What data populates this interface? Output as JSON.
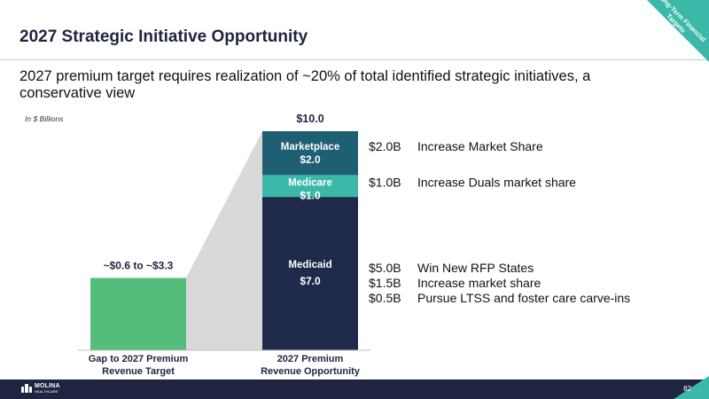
{
  "slide": {
    "title": "2027 Strategic Initiative Opportunity",
    "subtitle": "2027 premium target requires realization of ~20% of total identified strategic initiatives, a conservative view",
    "units_note": "In $ Billions",
    "corner_flag": "Long-Term Financial Targets",
    "page_number": "82"
  },
  "logo": {
    "name": "MOLINA",
    "tagline": "HEALTHCARE"
  },
  "colors": {
    "gap_bar": "#55bd7b",
    "medicaid": "#1f2a4a",
    "medicare": "#3bb8a8",
    "marketplace": "#1e5f74",
    "connector": "#d9d9d9",
    "accent": "#3bb8a8"
  },
  "chart_data": {
    "type": "bar",
    "stacked": true,
    "categories": [
      "Gap to 2027 Premium Revenue Target",
      "2027 Premium Revenue Opportunity"
    ],
    "category_label_lines": [
      [
        "Gap to 2027 Premium",
        "Revenue Target"
      ],
      [
        "2027 Premium",
        "Revenue Opportunity"
      ]
    ],
    "ylim": [
      0,
      10
    ],
    "gap": {
      "low": 0.6,
      "high": 3.3,
      "label": "~$0.6 to ~$3.3"
    },
    "segments": [
      {
        "name": "Medicaid",
        "value": 7.0,
        "label": "$7.0"
      },
      {
        "name": "Medicare",
        "value": 1.0,
        "label": "$1.0"
      },
      {
        "name": "Marketplace",
        "value": 2.0,
        "label": "$2.0"
      }
    ],
    "total_label": "$10.0",
    "annotations": [
      {
        "segment": "Marketplace",
        "items": [
          {
            "amount": "$2.0B",
            "text": "Increase Market Share"
          }
        ]
      },
      {
        "segment": "Medicare",
        "items": [
          {
            "amount": "$1.0B",
            "text": "Increase Duals market share"
          }
        ]
      },
      {
        "segment": "Medicaid",
        "items": [
          {
            "amount": "$5.0B",
            "text": "Win New RFP States"
          },
          {
            "amount": "$1.5B",
            "text": "Increase market share"
          },
          {
            "amount": "$0.5B",
            "text": "Pursue LTSS and foster care carve-ins"
          }
        ]
      }
    ]
  }
}
